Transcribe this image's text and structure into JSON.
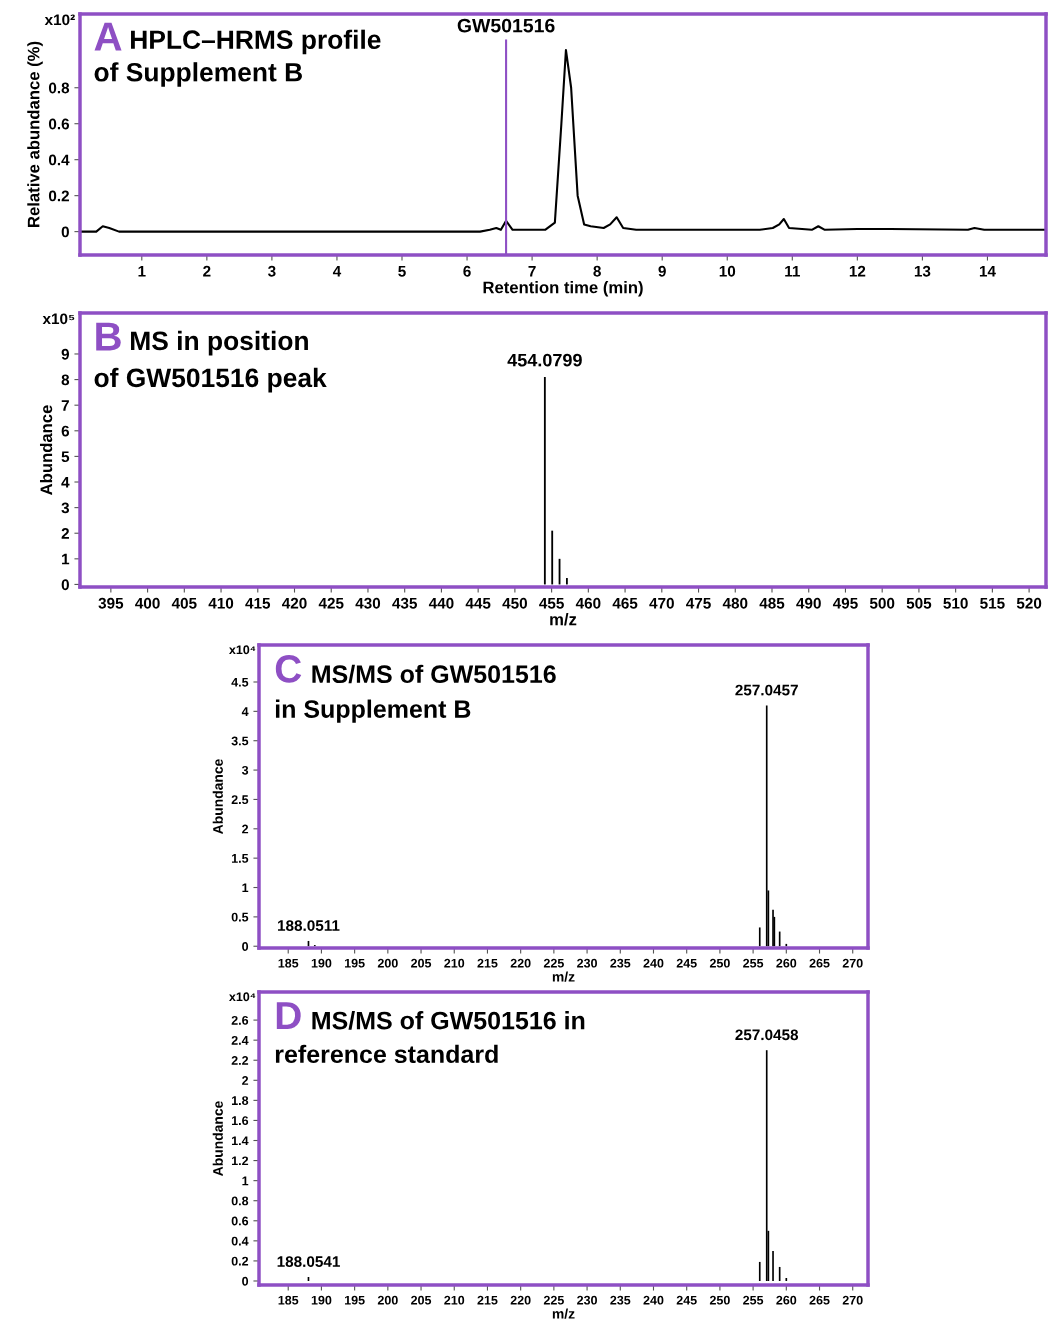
{
  "chart_data": [
    {
      "type": "line",
      "title": "A HPLC–HRMS profile\nof Supplement B",
      "xlabel": "Retention time (min)",
      "ylabel": "Relative abundance (%)",
      "annotations": [
        "x10²"
      ],
      "xlim": [
        0.05,
        14.9
      ],
      "ylim": [
        -0.13,
        1.21
      ],
      "xticks": [
        1,
        2,
        3,
        4,
        5,
        6,
        7,
        8,
        9,
        10,
        11,
        12,
        13,
        14
      ],
      "yticks": [
        0,
        0.2,
        0.4,
        0.6,
        0.8
      ],
      "ref_lines": [
        {
          "axis": "x",
          "value": 6.6,
          "label": "GW501516",
          "color": "#8e4fc4"
        }
      ],
      "series": [
        {
          "color": "#000000",
          "x": [
            0.05,
            0.3,
            0.4,
            0.5,
            0.65,
            6.2,
            6.35,
            6.45,
            6.52,
            6.6,
            6.7,
            7.2,
            7.35,
            7.45,
            7.52,
            7.6,
            7.7,
            7.8,
            7.9,
            8.1,
            8.2,
            8.3,
            8.4,
            8.6,
            10.5,
            10.7,
            10.8,
            10.87,
            10.95,
            11.3,
            11.4,
            11.5,
            12.0,
            12.5,
            13.7,
            13.8,
            13.95,
            14.9
          ],
          "values": [
            0.0,
            0.0,
            0.03,
            0.02,
            0.0,
            0.0,
            0.01,
            0.02,
            0.01,
            0.06,
            0.01,
            0.01,
            0.05,
            0.6,
            1.01,
            0.8,
            0.2,
            0.04,
            0.03,
            0.02,
            0.04,
            0.08,
            0.02,
            0.01,
            0.01,
            0.02,
            0.04,
            0.07,
            0.02,
            0.01,
            0.03,
            0.01,
            0.015,
            0.015,
            0.01,
            0.02,
            0.01,
            0.01
          ]
        }
      ]
    },
    {
      "type": "bar",
      "title": "B MS in position\nof GW501516 peak",
      "xlabel": "m/z",
      "ylabel": "Abundance",
      "annotations": [
        "x10⁵",
        {
          "text": "454.0799",
          "x": 454.0799,
          "y": 8.1
        }
      ],
      "xlim": [
        390.8,
        522.3
      ],
      "ylim": [
        -0.1,
        10.6
      ],
      "xticks": [
        395,
        400,
        405,
        410,
        415,
        420,
        425,
        430,
        435,
        440,
        445,
        450,
        455,
        460,
        465,
        470,
        475,
        480,
        485,
        490,
        495,
        500,
        505,
        510,
        515,
        520
      ],
      "yticks": [
        0,
        1,
        2,
        3,
        4,
        5,
        6,
        7,
        8,
        9
      ],
      "series": [
        {
          "color": "#000000",
          "x": [
            454.08,
            455.08,
            456.08,
            457.08
          ],
          "values": [
            8.1,
            2.1,
            1.0,
            0.25
          ]
        }
      ]
    },
    {
      "type": "bar",
      "title": "C MS/MS of GW501516\nin Supplement B",
      "xlabel": "m/z",
      "ylabel": "Abundance",
      "annotations": [
        "x10⁴",
        {
          "text": "188.0511",
          "x": 188.0511,
          "y": 0.09
        },
        {
          "text": "257.0457",
          "x": 257.0457,
          "y": 4.1
        }
      ],
      "xlim": [
        180.6,
        272.3
      ],
      "ylim": [
        -0.03,
        5.13
      ],
      "xticks": [
        185,
        190,
        195,
        200,
        205,
        210,
        215,
        220,
        225,
        230,
        235,
        240,
        245,
        250,
        255,
        260,
        265,
        270
      ],
      "yticks": [
        0,
        0.5,
        1,
        1.5,
        2,
        2.5,
        3,
        3.5,
        4,
        4.5
      ],
      "series": [
        {
          "color": "#000000",
          "x": [
            188.05,
            189.0,
            256.0,
            257.05,
            257.3,
            258.0,
            258.2,
            259.0,
            260.0
          ],
          "values": [
            0.09,
            0.02,
            0.32,
            4.1,
            0.95,
            0.62,
            0.5,
            0.25,
            0.04
          ]
        }
      ]
    },
    {
      "type": "bar",
      "title": "D MS/MS of GW501516 in\nreference standard",
      "xlabel": "m/z",
      "ylabel": "Abundance",
      "annotations": [
        "x10⁴",
        {
          "text": "188.0541",
          "x": 188.0541,
          "y": 0.04
        },
        {
          "text": "257.0458",
          "x": 257.0458,
          "y": 2.3
        }
      ],
      "xlim": [
        180.6,
        272.3
      ],
      "ylim": [
        -0.04,
        2.88
      ],
      "xticks": [
        185,
        190,
        195,
        200,
        205,
        210,
        215,
        220,
        225,
        230,
        235,
        240,
        245,
        250,
        255,
        260,
        265,
        270
      ],
      "yticks": [
        0,
        0.2,
        0.4,
        0.6,
        0.8,
        1,
        1.2,
        1.4,
        1.6,
        1.8,
        2,
        2.2,
        2.4,
        2.6
      ],
      "series": [
        {
          "color": "#000000",
          "x": [
            188.05,
            256.0,
            257.05,
            257.3,
            258.0,
            259.0,
            260.0
          ],
          "values": [
            0.04,
            0.19,
            2.3,
            0.5,
            0.3,
            0.14,
            0.03
          ]
        }
      ]
    }
  ]
}
